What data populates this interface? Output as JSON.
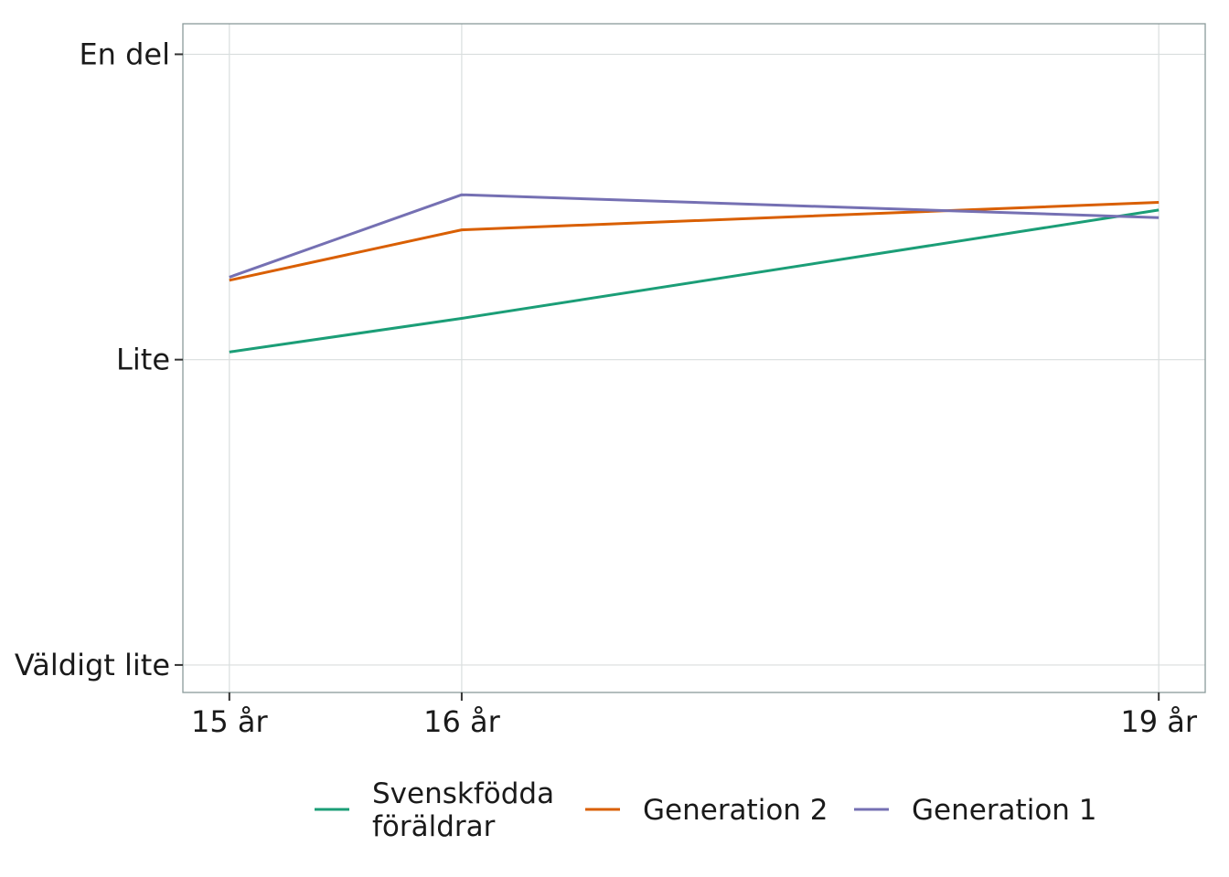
{
  "chart_data": {
    "type": "line",
    "x": [
      15,
      16,
      19
    ],
    "x_tick_labels": [
      "15 år",
      "16 år",
      "19 år"
    ],
    "xlim": [
      14.8,
      19.2
    ],
    "y_tick_values": [
      1,
      2,
      3
    ],
    "y_tick_labels": [
      "Väldigt lite",
      "Lite",
      "En del"
    ],
    "ylim": [
      0.91,
      3.1
    ],
    "grid": true,
    "legend_position": "bottom",
    "series": [
      {
        "name": "Svenskfödda föräldrar",
        "name_lines": [
          "Svenskfödda",
          "föräldrar"
        ],
        "color": "#1b9e77",
        "values": [
          2.025,
          2.135,
          2.49
        ]
      },
      {
        "name": "Generation 2",
        "name_lines": [
          "Generation 2"
        ],
        "color": "#d95f02",
        "values": [
          2.26,
          2.425,
          2.515
        ]
      },
      {
        "name": "Generation 1",
        "name_lines": [
          "Generation 1"
        ],
        "color": "#7570b3",
        "values": [
          2.27,
          2.54,
          2.465
        ]
      }
    ]
  }
}
